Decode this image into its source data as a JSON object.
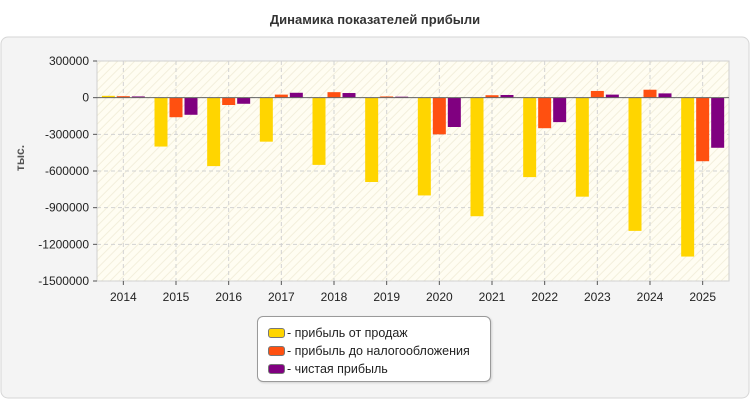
{
  "chart_data": {
    "type": "bar",
    "title": "Динамика показателей прибыли",
    "ylabel": "тыс.",
    "xlabel": "",
    "categories": [
      "2014",
      "2015",
      "2016",
      "2017",
      "2018",
      "2019",
      "2020",
      "2021",
      "2022",
      "2023",
      "2024",
      "2025"
    ],
    "ylim": [
      -1500000,
      300000
    ],
    "yticks": [
      300000,
      0,
      -300000,
      -600000,
      -900000,
      -1200000,
      -1500000
    ],
    "ytick_labels": [
      "300000",
      "0",
      "-300000",
      "-600000",
      "-900000",
      "-1200000",
      "-1500000"
    ],
    "grid": true,
    "legend_position": "bottom",
    "series": [
      {
        "name": "- прибыль от продаж",
        "color": "#FFD500",
        "values": [
          15000,
          -400000,
          -560000,
          -360000,
          -550000,
          -690000,
          -800000,
          -970000,
          -650000,
          -810000,
          -1090000,
          -1300000
        ]
      },
      {
        "name": "- прибыль до налогообложения",
        "color": "#FF5010",
        "values": [
          12000,
          -160000,
          -60000,
          25000,
          45000,
          10000,
          -300000,
          20000,
          -250000,
          55000,
          65000,
          -520000
        ]
      },
      {
        "name": "- чистая прибыль",
        "color": "#800080",
        "values": [
          10000,
          -140000,
          -50000,
          40000,
          38000,
          8000,
          -240000,
          22000,
          -200000,
          25000,
          35000,
          -410000
        ]
      }
    ]
  }
}
